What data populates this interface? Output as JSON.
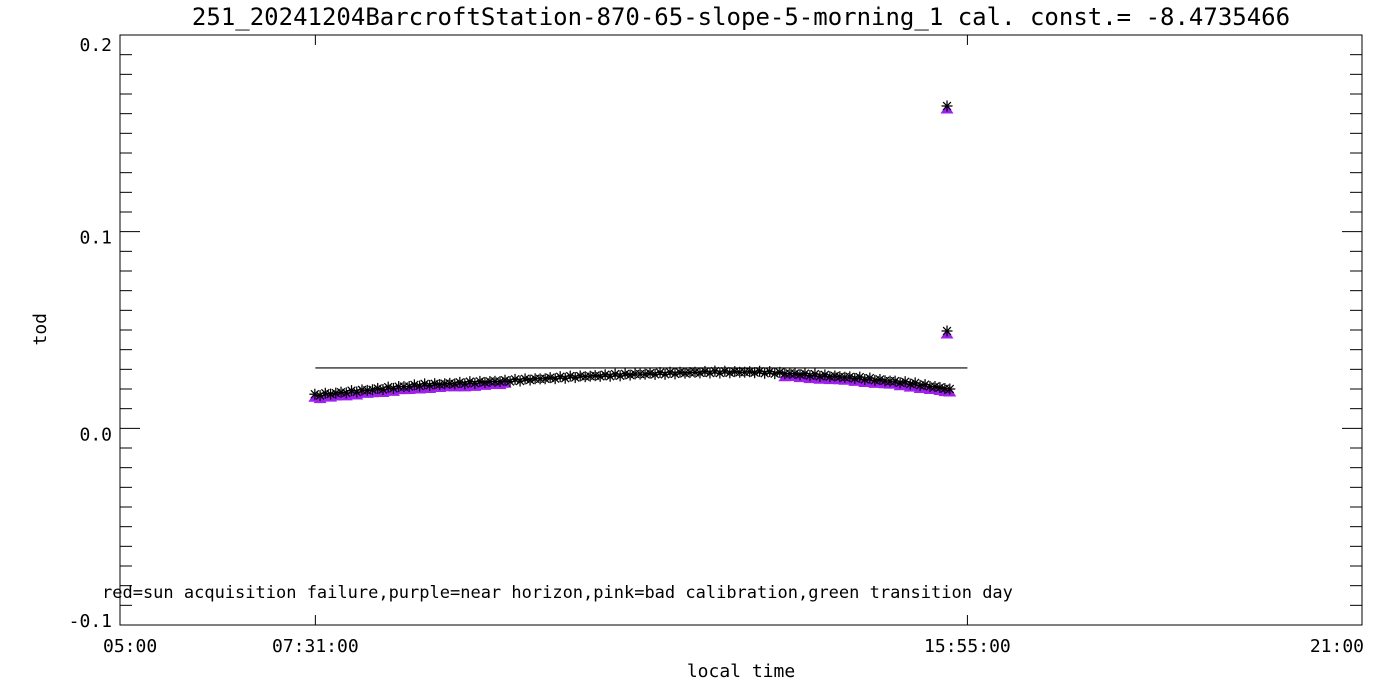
{
  "title": "251_20241204BarcroftStation-870-65-slope-5-morning_1 cal. const.= -8.4735466",
  "annotation": "red=sun acquisition failure,purple=near horizon,pink=bad calibration,green transition day",
  "colors": {
    "foreground": "#000000",
    "near_horizon_purple": "#A020F0",
    "background": "#FFFFFF"
  },
  "chart_data": {
    "type": "scatter",
    "title": "251_20241204BarcroftStation-870-65-slope-5-morning_1 cal. const.= -8.4735466",
    "xlabel": "local time",
    "ylabel": "tod",
    "calibration_constant": -8.4735466,
    "grid": false,
    "legend": "none (color meanings given in annotation text)",
    "x_axis": {
      "unit": "hours",
      "min": 5.0,
      "max": 21.0,
      "ticks": [
        {
          "value": 5.0,
          "label": "05:00"
        },
        {
          "value": 7.5167,
          "label": "07:31:00"
        },
        {
          "value": 15.9167,
          "label": "15:55:00"
        },
        {
          "value": 21.0,
          "label": "21:00"
        }
      ]
    },
    "y_axis": {
      "min": -0.1,
      "max": 0.2,
      "minor_tick_interval": 0.01,
      "major_tick_interval": 0.1,
      "ticks": [
        {
          "value": 0.2,
          "label": "0.2"
        },
        {
          "value": 0.1,
          "label": "0.1"
        },
        {
          "value": 0.0,
          "label": "0.0"
        },
        {
          "value": -0.1,
          "label": "-0.1"
        }
      ]
    },
    "fit_line": {
      "level": 0.0307,
      "x_start": 7.5167,
      "x_end": 15.9167,
      "color": "#000000"
    },
    "series": [
      {
        "name": "tod measurements",
        "marker": "asterisk",
        "color": "#000000",
        "anchors": [
          [
            7.51,
            0.0169
          ],
          [
            8.86,
            0.022
          ],
          [
            9.96,
            0.0241
          ],
          [
            10.8,
            0.0261
          ],
          [
            11.7,
            0.0276
          ],
          [
            12.6,
            0.0286
          ],
          [
            13.24,
            0.0286
          ],
          [
            13.76,
            0.0276
          ],
          [
            14.53,
            0.0256
          ],
          [
            15.18,
            0.023
          ],
          [
            15.69,
            0.02
          ]
        ],
        "point_spacing_hours": 0.066,
        "jitter": 0.0005
      },
      {
        "name": "near horizon (purple overlay)",
        "marker": "triangle",
        "color": "#A020F0",
        "windows": [
          [
            7.51,
            9.97
          ],
          [
            13.55,
            15.7
          ]
        ]
      }
    ],
    "outliers": [
      {
        "t": 15.654,
        "tod": 0.1639
      },
      {
        "t": 15.654,
        "tod": 0.0495
      }
    ]
  }
}
